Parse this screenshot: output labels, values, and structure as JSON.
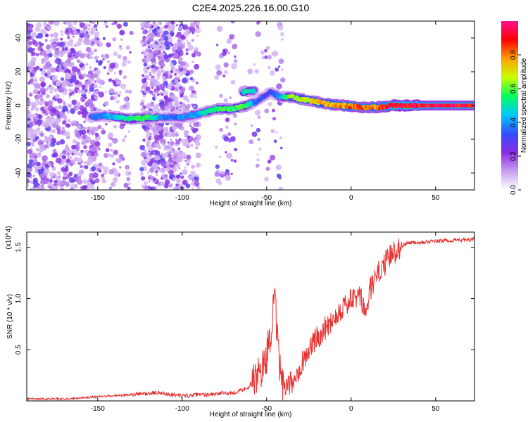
{
  "title": "C2E4.2025.226.16.00.G10",
  "colors": {
    "snr_line": "#e83030",
    "frame": "#000000",
    "background": "#ffffff"
  },
  "colorbar": {
    "label": "Normalized spectral amplitude",
    "ticks": [
      "0.0",
      "0.2",
      "0.4",
      "0.6",
      "0.8"
    ],
    "range": [
      0,
      1
    ],
    "colors": [
      "#ffffff",
      "#c8a0f0",
      "#8a2be2",
      "#3050ff",
      "#00c8ff",
      "#00ff60",
      "#c8ff00",
      "#ffa000",
      "#ff0000",
      "#ff1090"
    ]
  },
  "chart_data": [
    {
      "type": "heatmap",
      "title": "C2E4.2025.226.16.00.G10",
      "xlabel": "Height of straight line (km)",
      "ylabel": "Frequency (Hz)",
      "xlim": [
        -192,
        73
      ],
      "ylim": [
        -50,
        50
      ],
      "xticks": [
        "-150",
        "-100",
        "-50",
        "0",
        "50"
      ],
      "yticks": [
        "-40",
        "-20",
        "0",
        "20",
        "40"
      ],
      "ridge": [
        {
          "x": -154,
          "y": -7,
          "amp": 0.35
        },
        {
          "x": -146,
          "y": -6,
          "amp": 0.4
        },
        {
          "x": -130,
          "y": -8,
          "amp": 0.55
        },
        {
          "x": -120,
          "y": -7,
          "amp": 0.6
        },
        {
          "x": -110,
          "y": -7,
          "amp": 0.35
        },
        {
          "x": -100,
          "y": -7,
          "amp": 0.4
        },
        {
          "x": -90,
          "y": -5,
          "amp": 0.45
        },
        {
          "x": -80,
          "y": -2,
          "amp": 0.55
        },
        {
          "x": -70,
          "y": -2,
          "amp": 0.6
        },
        {
          "x": -62,
          "y": 0,
          "amp": 0.55
        },
        {
          "x": -55,
          "y": 3,
          "amp": 0.35
        },
        {
          "x": -48,
          "y": 8,
          "amp": 0.3
        },
        {
          "x": -42,
          "y": 5,
          "amp": 0.4
        },
        {
          "x": -35,
          "y": 5,
          "amp": 0.65
        },
        {
          "x": -25,
          "y": 3,
          "amp": 0.7
        },
        {
          "x": -15,
          "y": 1,
          "amp": 0.75
        },
        {
          "x": -5,
          "y": 0,
          "amp": 0.8
        },
        {
          "x": 5,
          "y": -1,
          "amp": 0.85
        },
        {
          "x": 15,
          "y": -1,
          "amp": 0.8
        },
        {
          "x": 25,
          "y": 0,
          "amp": 0.95
        },
        {
          "x": 50,
          "y": 0,
          "amp": 0.95
        },
        {
          "x": 73,
          "y": 0,
          "amp": 0.95
        }
      ],
      "side_ridge": [
        {
          "x": -64,
          "y": 8,
          "amp": 0.55
        },
        {
          "x": -57,
          "y": 9,
          "amp": 0.45
        }
      ]
    },
    {
      "type": "line",
      "xlabel": "Height of straight line (km)",
      "ylabel": "SNR (10 * v/v)",
      "scale_label": "(x10^4)",
      "xlim": [
        -192,
        73
      ],
      "ylim": [
        0,
        1.65
      ],
      "xticks": [
        "-150",
        "-100",
        "-50",
        "0",
        "50"
      ],
      "yticks": [
        "0.5",
        "1.0",
        "1.5"
      ],
      "series": [
        {
          "x": [
            -192,
            -170,
            -150,
            -130,
            -115,
            -100,
            -90,
            -80,
            -70,
            -62,
            -57,
            -53,
            -50,
            -47,
            -45,
            -44,
            -42,
            -40,
            -35,
            -30,
            -25,
            -20,
            -15,
            -10,
            -5,
            0,
            5,
            9,
            11,
            13,
            18,
            25,
            30,
            35,
            50,
            60,
            73
          ],
          "y": [
            0.02,
            0.02,
            0.04,
            0.06,
            0.08,
            0.05,
            0.06,
            0.07,
            0.08,
            0.12,
            0.2,
            0.3,
            0.45,
            0.75,
            1.0,
            0.65,
            0.3,
            0.1,
            0.18,
            0.35,
            0.5,
            0.62,
            0.72,
            0.82,
            0.92,
            0.98,
            1.02,
            0.85,
            1.08,
            1.15,
            1.3,
            1.45,
            1.52,
            1.55,
            1.56,
            1.57,
            1.58
          ]
        }
      ]
    }
  ]
}
